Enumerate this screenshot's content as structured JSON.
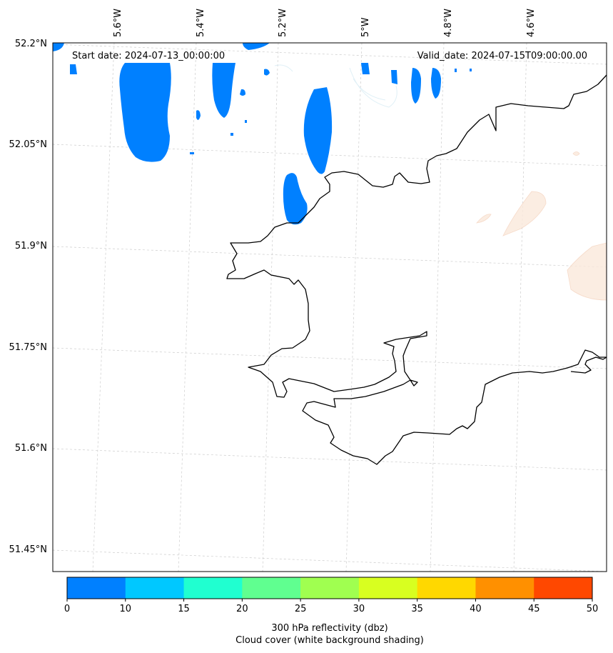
{
  "map": {
    "start_label": "Start date: 2024-07-13_00:00:00",
    "valid_label": "Valid_date: 2024-07-15T09:00:00.00",
    "lon_labels": [
      "5.6°W",
      "5.4°W",
      "5.2°W",
      "5°W",
      "4.8°W",
      "4.6°W"
    ],
    "lat_labels": [
      "52.2°N",
      "52.05°N",
      "51.9°N",
      "51.75°N",
      "51.6°N",
      "51.45°N"
    ],
    "reflectivity_color": "#0080ff",
    "coast_color": "#000000"
  },
  "colorbar": {
    "ticks": [
      "0",
      "10",
      "15",
      "20",
      "25",
      "30",
      "35",
      "40",
      "45",
      "50"
    ],
    "colors": [
      "#0080ff",
      "#00c8ff",
      "#20ffd0",
      "#60ff90",
      "#a0ff50",
      "#d8ff20",
      "#ffd800",
      "#ff9000",
      "#ff4800"
    ],
    "title_line1": "300 hPa reflectivity (dbz)",
    "title_line2": "Cloud cover (white background shading)"
  }
}
